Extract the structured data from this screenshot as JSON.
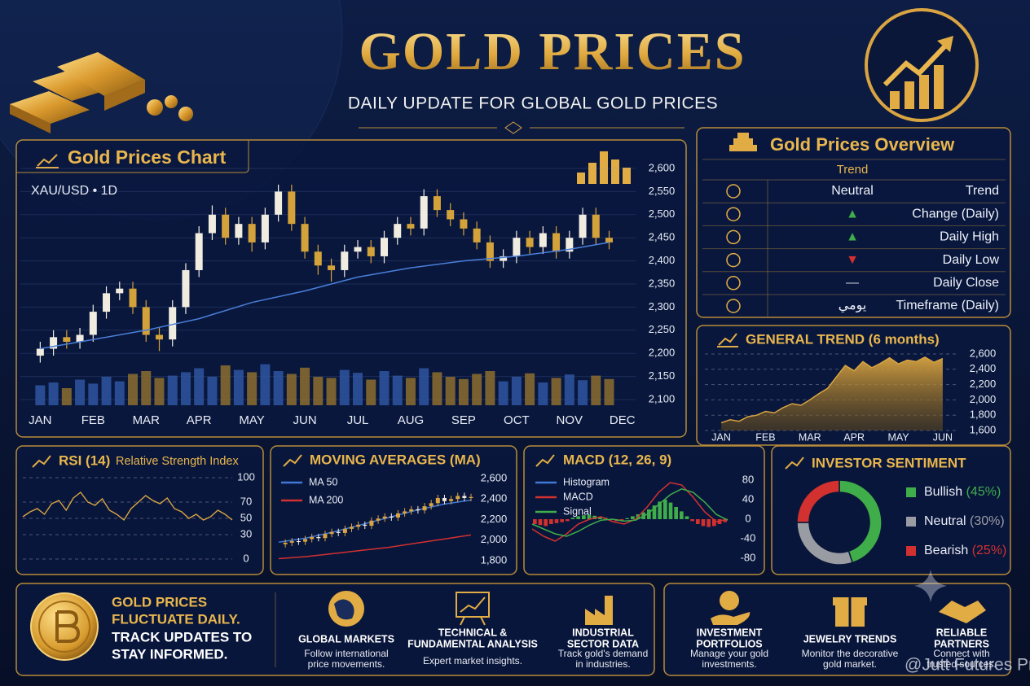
{
  "header": {
    "title": "GOLD PRICES",
    "subtitle": "DAILY UPDATE FOR GLOBAL GOLD PRICES"
  },
  "chart_data": [
    {
      "type": "candlestick",
      "title": "Gold Prices Chart",
      "subtitle": "XAU/USD • 1D",
      "open": [
        2195,
        2210,
        2235,
        2225,
        2240,
        2290,
        2330,
        2340,
        2300,
        2240,
        2230,
        2300,
        2380,
        2460,
        2500,
        2450,
        2480,
        2440,
        2500,
        2550,
        2480,
        2420,
        2390,
        2380,
        2420,
        2430,
        2410,
        2450,
        2480,
        2470,
        2540,
        2510,
        2490,
        2470,
        2440,
        2400,
        2410,
        2450,
        2430,
        2460,
        2420,
        2450,
        2500,
        2450
      ],
      "high": [
        2225,
        2250,
        2250,
        2255,
        2305,
        2345,
        2355,
        2355,
        2315,
        2255,
        2315,
        2395,
        2475,
        2520,
        2515,
        2495,
        2495,
        2515,
        2565,
        2565,
        2495,
        2435,
        2405,
        2435,
        2445,
        2445,
        2465,
        2495,
        2495,
        2555,
        2555,
        2525,
        2505,
        2485,
        2455,
        2425,
        2465,
        2465,
        2475,
        2475,
        2465,
        2515,
        2515,
        2465
      ],
      "low": [
        2180,
        2195,
        2210,
        2210,
        2225,
        2275,
        2315,
        2285,
        2225,
        2205,
        2215,
        2285,
        2365,
        2445,
        2435,
        2435,
        2420,
        2425,
        2485,
        2465,
        2405,
        2370,
        2355,
        2365,
        2405,
        2395,
        2395,
        2435,
        2455,
        2455,
        2495,
        2475,
        2455,
        2425,
        2385,
        2385,
        2395,
        2415,
        2415,
        2405,
        2405,
        2435,
        2435,
        2425
      ],
      "close": [
        2210,
        2235,
        2225,
        2240,
        2290,
        2330,
        2340,
        2300,
        2240,
        2230,
        2300,
        2380,
        2460,
        2500,
        2450,
        2480,
        2440,
        2500,
        2550,
        2480,
        2420,
        2390,
        2380,
        2420,
        2430,
        2410,
        2450,
        2480,
        2470,
        2540,
        2510,
        2490,
        2470,
        2440,
        2400,
        2410,
        2450,
        2430,
        2460,
        2420,
        2450,
        2500,
        2450,
        2440
      ],
      "up_color": "#f1ece0",
      "down_color": "#d4a23a",
      "volume": [
        35,
        40,
        30,
        45,
        38,
        50,
        42,
        55,
        60,
        48,
        52,
        58,
        65,
        50,
        70,
        62,
        58,
        72,
        60,
        55,
        66,
        50,
        48,
        62,
        57,
        45,
        60,
        52,
        48,
        65,
        58,
        50,
        46,
        55,
        60,
        42,
        50,
        56,
        40,
        48,
        54,
        44,
        52,
        46
      ],
      "volume_up_color": "#2f55a0",
      "volume_down_color": "#8c6d2e",
      "volume_lim": [
        0,
        100
      ],
      "ma": {
        "x": [
          0,
          4,
          8,
          12,
          16,
          20,
          24,
          28,
          32,
          36,
          40,
          43
        ],
        "values": [
          2210,
          2230,
          2250,
          2275,
          2310,
          2335,
          2365,
          2385,
          2400,
          2410,
          2425,
          2440
        ],
        "color": "#4a7fd8"
      },
      "xlim": [
        -1.5,
        45
      ],
      "xticks": [
        {
          "value": 0,
          "label": "JAN"
        },
        {
          "value": 4,
          "label": "FEB"
        },
        {
          "value": 8,
          "label": "MAR"
        },
        {
          "value": 12,
          "label": "APR"
        },
        {
          "value": 16,
          "label": "MAY"
        },
        {
          "value": 20,
          "label": "JUN"
        },
        {
          "value": 24,
          "label": "JUL"
        },
        {
          "value": 28,
          "label": "AUG"
        },
        {
          "value": 32,
          "label": "SEP"
        },
        {
          "value": 36,
          "label": "OCT"
        },
        {
          "value": 40,
          "label": "NOV"
        },
        {
          "value": 44,
          "label": "DEC"
        }
      ],
      "ylim": [
        2100,
        2600
      ],
      "yticks": [
        {
          "value": 2100,
          "label": "2,100"
        },
        {
          "value": 2150,
          "label": "2,150"
        },
        {
          "value": 2200,
          "label": "2,200"
        },
        {
          "value": 2250,
          "label": "2,250"
        },
        {
          "value": 2300,
          "label": "2,300"
        },
        {
          "value": 2350,
          "label": "2,350"
        },
        {
          "value": 2400,
          "label": "2,400"
        },
        {
          "value": 2450,
          "label": "2,450"
        },
        {
          "value": 2500,
          "label": "2,500"
        },
        {
          "value": 2550,
          "label": "2,550"
        },
        {
          "value": 2600,
          "label": "2,600"
        }
      ],
      "grid": true
    },
    {
      "type": "area",
      "title": "GENERAL TREND (6 months)",
      "x": [
        0,
        0.2,
        0.4,
        0.6,
        0.8,
        1,
        1.2,
        1.4,
        1.6,
        1.8,
        2,
        2.2,
        2.4,
        2.6,
        2.8,
        3,
        3.2,
        3.4,
        3.6,
        3.8,
        4,
        4.2,
        4.4,
        4.6,
        4.8,
        5
      ],
      "values": [
        1700,
        1740,
        1720,
        1780,
        1800,
        1850,
        1830,
        1900,
        1950,
        1930,
        2000,
        2080,
        2150,
        2300,
        2450,
        2380,
        2500,
        2420,
        2480,
        2550,
        2470,
        2520,
        2500,
        2560,
        2490,
        2540
      ],
      "color": "#d9a441",
      "xlim": [
        -0.37,
        5.37
      ],
      "xticks": [
        {
          "value": 0,
          "label": "JAN"
        },
        {
          "value": 1,
          "label": "FEB"
        },
        {
          "value": 2,
          "label": "MAR"
        },
        {
          "value": 3,
          "label": "APR"
        },
        {
          "value": 4,
          "label": "MAY"
        },
        {
          "value": 5,
          "label": "JUN"
        }
      ],
      "ylim": [
        1600,
        2600
      ],
      "yticks": [
        {
          "value": 1600,
          "label": "1,600"
        },
        {
          "value": 1800,
          "label": "1,800"
        },
        {
          "value": 2000,
          "label": "2,000"
        },
        {
          "value": 2200,
          "label": "2,200"
        },
        {
          "value": 2400,
          "label": "2,400"
        },
        {
          "value": 2600,
          "label": "2,600"
        }
      ],
      "grid": true
    },
    {
      "type": "line",
      "title": "RSI (14)",
      "subtitle": "Relative Strength Index",
      "values": [
        52,
        58,
        62,
        55,
        68,
        72,
        60,
        75,
        82,
        70,
        66,
        74,
        60,
        55,
        48,
        62,
        70,
        78,
        72,
        68,
        75,
        62,
        58,
        50,
        55,
        48,
        52,
        60,
        55,
        48
      ],
      "color": "#d9a441",
      "ylim": [
        0,
        100
      ],
      "yticks": [
        0,
        30,
        50,
        70,
        100
      ],
      "grid": true
    },
    {
      "type": "line",
      "title": "MOVING AVERAGES (MA)",
      "values": [
        1960,
        1975,
        1990,
        1985,
        2010,
        2030,
        2020,
        2060,
        2080,
        2070,
        2110,
        2130,
        2150,
        2140,
        2190,
        2210,
        2230,
        2220,
        2260,
        2280,
        2300,
        2290,
        2330,
        2360,
        2410,
        2380,
        2400,
        2430,
        2410,
        2420
      ],
      "up_color": "#d9a441",
      "down_color": "#f1ece0",
      "series": [
        {
          "name": "MA 50",
          "color": "#3f78d6",
          "values": [
            1980,
            2020,
            2080,
            2150,
            2220,
            2290,
            2350,
            2390
          ]
        },
        {
          "name": "MA 200",
          "color": "#d2312f",
          "values": [
            1820,
            1840,
            1870,
            1900,
            1930,
            1970,
            2010,
            2050
          ]
        }
      ],
      "ylim": [
        1800,
        2600
      ],
      "yticks": [
        {
          "value": 1800,
          "label": "1,800"
        },
        {
          "value": 2000,
          "label": "2,000"
        },
        {
          "value": 2200,
          "label": "2,200"
        },
        {
          "value": 2400,
          "label": "2,400"
        },
        {
          "value": 2600,
          "label": "2,600"
        }
      ],
      "grid": false
    },
    {
      "type": "macd",
      "title": "MACD (12, 26, 9)",
      "series": [
        {
          "name": "Histogram",
          "color": "#3f78d6",
          "values": [
            -10,
            -12,
            -14,
            -10,
            -8,
            -6,
            -4,
            3,
            6,
            8,
            9,
            7,
            5,
            3,
            -2,
            -4,
            -3,
            2,
            6,
            10,
            14,
            20,
            28,
            36,
            40,
            34,
            25,
            16,
            6,
            -4,
            -10,
            -14,
            -16,
            -14,
            -10,
            -6
          ]
        },
        {
          "name": "MACD",
          "color": "#d2312f",
          "values": [
            -20,
            -35,
            -45,
            -30,
            -10,
            0,
            5,
            -5,
            -10,
            0,
            25,
            55,
            75,
            70,
            45,
            15,
            -5,
            0
          ]
        },
        {
          "name": "Signal",
          "color": "#3fae4a",
          "values": [
            -10,
            -20,
            -30,
            -35,
            -25,
            -12,
            -2,
            0,
            -4,
            -2,
            10,
            30,
            50,
            62,
            55,
            35,
            10,
            -2
          ]
        }
      ],
      "positive_color": "#3fae4a",
      "negative_color": "#d2312f",
      "ylim": [
        -80,
        80
      ],
      "yticks": [
        -80,
        -40,
        0,
        40,
        80
      ],
      "grid": false
    },
    {
      "type": "donut",
      "title": "INVESTOR SENTIMENT",
      "categories": [
        "Bullish",
        "Neutral",
        "Bearish"
      ],
      "values": [
        45,
        30,
        25
      ],
      "value_labels": [
        "(45%)",
        "(30%)",
        "(25%)"
      ],
      "colors": [
        "#3fae4a",
        "#9a9ca3",
        "#d2312f"
      ]
    }
  ],
  "overview": {
    "title": "Gold Prices Overview",
    "header": "Trend",
    "rows": [
      {
        "value": "Neutral",
        "label": "Trend",
        "color": "#eef1f8"
      },
      {
        "value": "▲",
        "label": "Change (Daily)",
        "color": "#3fae4a"
      },
      {
        "value": "▲",
        "label": "Daily High",
        "color": "#3fae4a"
      },
      {
        "value": "▼",
        "label": "Daily Low",
        "color": "#d2312f"
      },
      {
        "value": "—",
        "label": "Daily Close",
        "color": "#c9ccd4"
      },
      {
        "value": "يومي",
        "label": "Timeframe (Daily)",
        "color": "#eef1f8"
      }
    ]
  },
  "footer": {
    "highlight": [
      "GOLD PRICES",
      "FLUCTUATE DAILY."
    ],
    "body": [
      "TRACK UPDATES TO",
      "STAY INFORMED."
    ],
    "items": [
      {
        "title": [
          "GLOBAL MARKETS"
        ],
        "desc": [
          "Follow international",
          "price movements."
        ]
      },
      {
        "title": [
          "TECHNICAL &",
          "FUNDAMENTAL ANALYSIS"
        ],
        "desc": [
          "Expert market insights."
        ]
      },
      {
        "title": [
          "INDUSTRIAL",
          "SECTOR DATA"
        ],
        "desc": [
          "Track gold's demand",
          "in industries."
        ]
      },
      {
        "title": [
          "INVESTMENT",
          "PORTFOLIOS"
        ],
        "desc": [
          "Manage your gold",
          "investments."
        ]
      },
      {
        "title": [
          "JEWELRY TRENDS"
        ],
        "desc": [
          "Monitor the decorative",
          "gold market."
        ]
      },
      {
        "title": [
          "RELIABLE",
          "PARTNERS"
        ],
        "desc": [
          "Connect with",
          "trusted sources."
        ]
      }
    ]
  },
  "watermark": "@Jutt Futures Pro"
}
